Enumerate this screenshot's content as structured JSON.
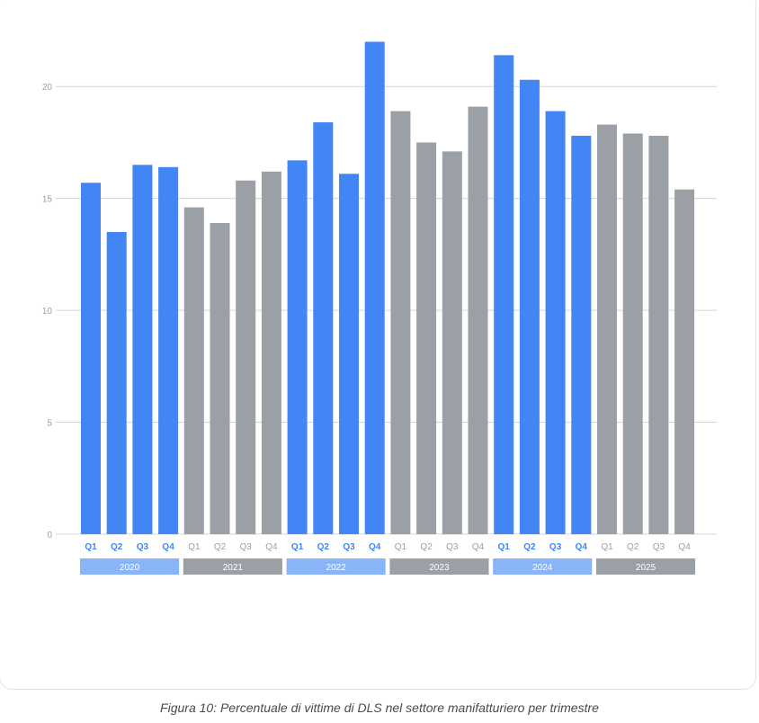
{
  "chart_data": {
    "type": "bar",
    "title": "",
    "xlabel": "",
    "ylabel": "",
    "ylim": [
      0,
      22.5
    ],
    "yticks": [
      0,
      5,
      10,
      15,
      20
    ],
    "grid": true,
    "colors": {
      "highlight": "#4285f4",
      "muted": "#9aa0a6",
      "highlight_year_box": "#8ab4f8",
      "muted_year_box": "#9aa0a6",
      "axis_text": "#9aa0a6"
    },
    "years": [
      {
        "label": "2020",
        "style": "highlight",
        "quarters": [
          "Q1",
          "Q2",
          "Q3",
          "Q4"
        ],
        "values": [
          15.7,
          13.5,
          16.5,
          16.4
        ]
      },
      {
        "label": "2021",
        "style": "muted",
        "quarters": [
          "Q1",
          "Q2",
          "Q3",
          "Q4"
        ],
        "values": [
          14.6,
          13.9,
          15.8,
          16.2
        ]
      },
      {
        "label": "2022",
        "style": "highlight",
        "quarters": [
          "Q1",
          "Q2",
          "Q3",
          "Q4"
        ],
        "values": [
          16.7,
          18.4,
          16.1,
          22.0
        ]
      },
      {
        "label": "2023",
        "style": "muted",
        "quarters": [
          "Q1",
          "Q2",
          "Q3",
          "Q4"
        ],
        "values": [
          18.9,
          17.5,
          17.1,
          19.1
        ]
      },
      {
        "label": "2024",
        "style": "highlight",
        "quarters": [
          "Q1",
          "Q2",
          "Q3",
          "Q4"
        ],
        "values": [
          21.4,
          20.3,
          18.9,
          17.8
        ]
      },
      {
        "label": "2025",
        "style": "muted",
        "quarters": [
          "Q1",
          "Q2",
          "Q3",
          "Q4"
        ],
        "values": [
          18.3,
          17.9,
          17.8,
          15.4
        ]
      }
    ]
  },
  "caption": "Figura 10: Percentuale di vittime di DLS nel settore manifatturiero per trimestre"
}
